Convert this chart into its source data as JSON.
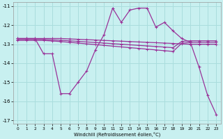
{
  "xlabel": "Windchill (Refroidissement éolien,°C)",
  "xlim": [
    -0.5,
    23.5
  ],
  "ylim": [
    -17.2,
    -10.8
  ],
  "yticks": [
    -17,
    -16,
    -15,
    -14,
    -13,
    -12,
    -11
  ],
  "xticks": [
    0,
    1,
    2,
    3,
    4,
    5,
    6,
    7,
    8,
    9,
    10,
    11,
    12,
    13,
    14,
    15,
    16,
    17,
    18,
    19,
    20,
    21,
    22,
    23
  ],
  "background_color": "#c8f0f0",
  "grid_color": "#aadddd",
  "line_color": "#993399",
  "line1_x": [
    0,
    1,
    2,
    3,
    4,
    5,
    6,
    7,
    8,
    9,
    10,
    11,
    12,
    13,
    14,
    15,
    16,
    17,
    18,
    19,
    20,
    21,
    22,
    23
  ],
  "line1_y": [
    -12.7,
    -12.7,
    -12.7,
    -12.7,
    -12.7,
    -12.7,
    -12.72,
    -12.74,
    -12.76,
    -12.78,
    -12.8,
    -12.82,
    -12.84,
    -12.86,
    -12.88,
    -12.9,
    -12.92,
    -12.94,
    -12.96,
    -12.98,
    -13.0,
    -13.0,
    -13.0,
    -13.0
  ],
  "line2_x": [
    0,
    1,
    2,
    3,
    4,
    5,
    6,
    7,
    8,
    9,
    10,
    11,
    12,
    13,
    14,
    15,
    16,
    17,
    18,
    19,
    20,
    21,
    22,
    23
  ],
  "line2_y": [
    -12.75,
    -12.75,
    -12.75,
    -12.75,
    -12.77,
    -12.79,
    -12.82,
    -12.85,
    -12.88,
    -12.91,
    -12.94,
    -12.97,
    -13.0,
    -13.03,
    -13.06,
    -13.09,
    -13.12,
    -13.15,
    -13.18,
    -12.85,
    -12.82,
    -12.82,
    -12.82,
    -12.82
  ],
  "line3_x": [
    0,
    1,
    2,
    3,
    4,
    5,
    6,
    7,
    8,
    9,
    10,
    11,
    12,
    13,
    14,
    15,
    16,
    17,
    18,
    19,
    20,
    21,
    22,
    23
  ],
  "line3_y": [
    -12.8,
    -12.8,
    -12.8,
    -12.8,
    -12.83,
    -12.86,
    -12.9,
    -12.94,
    -12.98,
    -13.02,
    -13.06,
    -13.1,
    -13.14,
    -13.18,
    -13.22,
    -13.26,
    -13.3,
    -13.34,
    -13.38,
    -12.95,
    -12.9,
    -12.9,
    -12.9,
    -12.9
  ],
  "line4_x": [
    0,
    1,
    2,
    3,
    4,
    5,
    6,
    7,
    8,
    9,
    10,
    11,
    12,
    13,
    14,
    15,
    16,
    17,
    18,
    19,
    20,
    21,
    22,
    23
  ],
  "line4_y": [
    -12.7,
    -12.7,
    -12.7,
    -13.5,
    -13.5,
    -15.6,
    -15.6,
    -15.0,
    -14.4,
    -13.3,
    -12.5,
    -11.1,
    -11.85,
    -11.2,
    -11.1,
    -11.1,
    -12.1,
    -11.85,
    -12.3,
    -12.7,
    -12.9,
    -14.2,
    -15.7,
    -16.7
  ]
}
